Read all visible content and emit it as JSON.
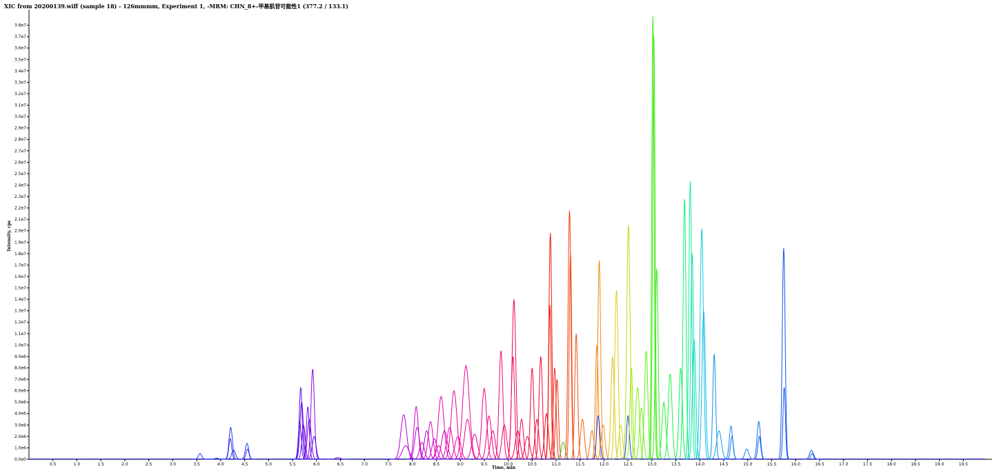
{
  "chart_data": {
    "type": "line",
    "title": "XIC from 20200139.wiff (sample 18) - 126mmmm, Experiment 1, -MRM: CHN_8+-甲基肌苷可能性1 (377.2 / 133.1)",
    "xlabel": "Time, min",
    "ylabel": "Intensity, cps",
    "xlim": [
      0.0,
      20.1
    ],
    "ylim": [
      0,
      39000000
    ],
    "grid": false,
    "legend": "none",
    "x_ticks": [
      "0.5",
      "1.0",
      "1.5",
      "2.0",
      "2.5",
      "3.0",
      "3.5",
      "4.0",
      "4.5",
      "5.0",
      "5.5",
      "6.0",
      "6.5",
      "7.0",
      "7.5",
      "8.0",
      "8.5",
      "9.0",
      "9.5",
      "10.0",
      "10.5",
      "11.0",
      "11.5",
      "12.0",
      "12.5",
      "13.0",
      "13.5",
      "14.0",
      "14.5",
      "15.0",
      "15.5",
      "16.0",
      "16.5",
      "17.0",
      "17.5",
      "18.0",
      "18.5",
      "19.0",
      "19.5"
    ],
    "y_ticks": [
      "0.0e0",
      "1.0e6",
      "2.0e6",
      "3.0e6",
      "4.0e6",
      "5.0e6",
      "6.0e6",
      "7.0e6",
      "8.0e6",
      "9.0e6",
      "1.0e7",
      "1.1e7",
      "1.2e7",
      "1.3e7",
      "1.4e7",
      "1.5e7",
      "1.6e7",
      "1.7e7",
      "1.8e7",
      "1.9e7",
      "2.0e7",
      "2.1e7",
      "2.2e7",
      "2.3e7",
      "2.4e7",
      "2.5e7",
      "2.6e7",
      "2.7e7",
      "2.8e7",
      "2.9e7",
      "3.0e7",
      "3.1e7",
      "3.2e7",
      "3.3e7",
      "3.4e7",
      "3.5e7",
      "3.6e7",
      "3.7e7",
      "3.8e7"
    ],
    "peaks": [
      {
        "t": 3.57,
        "h": 500000,
        "w": 0.035,
        "color": "#1a3cf0"
      },
      {
        "t": 3.92,
        "h": 100000,
        "w": 0.04,
        "color": "#1a3cf0"
      },
      {
        "t": 4.21,
        "h": 2800000,
        "w": 0.035,
        "color": "#1a3cf0"
      },
      {
        "t": 4.2,
        "h": 1800000,
        "w": 0.03,
        "color": "#3a2ce8"
      },
      {
        "t": 4.27,
        "h": 800000,
        "w": 0.04,
        "color": "#2a34ec"
      },
      {
        "t": 4.55,
        "h": 1400000,
        "w": 0.035,
        "color": "#1a3cf0"
      },
      {
        "t": 4.56,
        "h": 900000,
        "w": 0.03,
        "color": "#3a2ce8"
      },
      {
        "t": 5.67,
        "h": 6300000,
        "w": 0.03,
        "color": "#5a10e8"
      },
      {
        "t": 5.69,
        "h": 5000000,
        "w": 0.035,
        "color": "#6a08e6"
      },
      {
        "t": 5.65,
        "h": 3300000,
        "w": 0.03,
        "color": "#4a18ea"
      },
      {
        "t": 5.73,
        "h": 3000000,
        "w": 0.035,
        "color": "#7a06e4"
      },
      {
        "t": 5.82,
        "h": 4600000,
        "w": 0.03,
        "color": "#6a08e6"
      },
      {
        "t": 5.85,
        "h": 3500000,
        "w": 0.04,
        "color": "#7a06e4"
      },
      {
        "t": 5.92,
        "h": 7900000,
        "w": 0.035,
        "color": "#8a00e0"
      },
      {
        "t": 5.95,
        "h": 2000000,
        "w": 0.04,
        "color": "#5a10e8"
      },
      {
        "t": 6.45,
        "h": 150000,
        "w": 0.05,
        "color": "#8a00e0"
      },
      {
        "t": 7.82,
        "h": 3900000,
        "w": 0.06,
        "color": "#b000d8"
      },
      {
        "t": 7.86,
        "h": 1200000,
        "w": 0.07,
        "color": "#c000d0"
      },
      {
        "t": 8.08,
        "h": 4600000,
        "w": 0.045,
        "color": "#c800cc"
      },
      {
        "t": 8.1,
        "h": 2800000,
        "w": 0.05,
        "color": "#b000d8"
      },
      {
        "t": 8.2,
        "h": 1500000,
        "w": 0.05,
        "color": "#d000c4"
      },
      {
        "t": 8.3,
        "h": 2500000,
        "w": 0.05,
        "color": "#c000d0"
      },
      {
        "t": 8.38,
        "h": 3300000,
        "w": 0.05,
        "color": "#d800c0"
      },
      {
        "t": 8.46,
        "h": 1800000,
        "w": 0.05,
        "color": "#c800cc"
      },
      {
        "t": 8.55,
        "h": 1200000,
        "w": 0.05,
        "color": "#e000b8"
      },
      {
        "t": 8.6,
        "h": 5500000,
        "w": 0.06,
        "color": "#e000b0"
      },
      {
        "t": 8.67,
        "h": 2500000,
        "w": 0.06,
        "color": "#d800c0"
      },
      {
        "t": 8.78,
        "h": 2800000,
        "w": 0.06,
        "color": "#e800a8"
      },
      {
        "t": 8.87,
        "h": 6000000,
        "w": 0.06,
        "color": "#e800a0"
      },
      {
        "t": 8.95,
        "h": 2000000,
        "w": 0.06,
        "color": "#f000a0"
      },
      {
        "t": 9.12,
        "h": 8200000,
        "w": 0.07,
        "color": "#f00098"
      },
      {
        "t": 9.15,
        "h": 3500000,
        "w": 0.06,
        "color": "#f00090"
      },
      {
        "t": 9.3,
        "h": 2200000,
        "w": 0.06,
        "color": "#f00090"
      },
      {
        "t": 9.5,
        "h": 6200000,
        "w": 0.05,
        "color": "#f00088"
      },
      {
        "t": 9.6,
        "h": 3800000,
        "w": 0.05,
        "color": "#f00080"
      },
      {
        "t": 9.68,
        "h": 2500000,
        "w": 0.05,
        "color": "#f00078"
      },
      {
        "t": 9.85,
        "h": 9500000,
        "w": 0.04,
        "color": "#f00070"
      },
      {
        "t": 9.92,
        "h": 3000000,
        "w": 0.05,
        "color": "#f00068"
      },
      {
        "t": 10.12,
        "h": 14000000,
        "w": 0.04,
        "color": "#f00060"
      },
      {
        "t": 10.1,
        "h": 9000000,
        "w": 0.035,
        "color": "#f00058"
      },
      {
        "t": 10.2,
        "h": 2500000,
        "w": 0.05,
        "color": "#f00050"
      },
      {
        "t": 10.28,
        "h": 3500000,
        "w": 0.04,
        "color": "#f00048"
      },
      {
        "t": 10.4,
        "h": 2000000,
        "w": 0.05,
        "color": "#f00040"
      },
      {
        "t": 10.5,
        "h": 8000000,
        "w": 0.035,
        "color": "#f00038"
      },
      {
        "t": 10.6,
        "h": 3500000,
        "w": 0.04,
        "color": "#f00030"
      },
      {
        "t": 10.68,
        "h": 9000000,
        "w": 0.035,
        "color": "#f00028"
      },
      {
        "t": 10.8,
        "h": 4000000,
        "w": 0.04,
        "color": "#f00020"
      },
      {
        "t": 10.88,
        "h": 19800000,
        "w": 0.03,
        "color": "#f01010"
      },
      {
        "t": 10.87,
        "h": 13500000,
        "w": 0.025,
        "color": "#f02010"
      },
      {
        "t": 10.97,
        "h": 8000000,
        "w": 0.03,
        "color": "#f02810"
      },
      {
        "t": 11.02,
        "h": 7000000,
        "w": 0.03,
        "color": "#f03010"
      },
      {
        "t": 11.15,
        "h": 1500000,
        "w": 0.04,
        "color": "#40c000"
      },
      {
        "t": 11.28,
        "h": 21800000,
        "w": 0.03,
        "color": "#f04010"
      },
      {
        "t": 11.3,
        "h": 18000000,
        "w": 0.025,
        "color": "#f04810"
      },
      {
        "t": 11.42,
        "h": 11000000,
        "w": 0.03,
        "color": "#f05010"
      },
      {
        "t": 11.55,
        "h": 3500000,
        "w": 0.04,
        "color": "#f06010"
      },
      {
        "t": 11.75,
        "h": 2500000,
        "w": 0.04,
        "color": "#f07010"
      },
      {
        "t": 11.85,
        "h": 10000000,
        "w": 0.03,
        "color": "#f08010"
      },
      {
        "t": 11.9,
        "h": 17400000,
        "w": 0.03,
        "color": "#f08810"
      },
      {
        "t": 11.88,
        "h": 3800000,
        "w": 0.035,
        "color": "#1a3cf0"
      },
      {
        "t": 11.98,
        "h": 3000000,
        "w": 0.04,
        "color": "#f09010"
      },
      {
        "t": 12.18,
        "h": 9000000,
        "w": 0.035,
        "color": "#e0c010"
      },
      {
        "t": 12.26,
        "h": 14800000,
        "w": 0.035,
        "color": "#d8d010"
      },
      {
        "t": 12.35,
        "h": 3000000,
        "w": 0.04,
        "color": "#c8d810"
      },
      {
        "t": 12.5,
        "h": 3800000,
        "w": 0.03,
        "color": "#1a3cf0"
      },
      {
        "t": 12.51,
        "h": 20500000,
        "w": 0.035,
        "color": "#b0e010"
      },
      {
        "t": 12.57,
        "h": 8000000,
        "w": 0.03,
        "color": "#a0e810"
      },
      {
        "t": 12.7,
        "h": 6300000,
        "w": 0.04,
        "color": "#80f010"
      },
      {
        "t": 12.78,
        "h": 4500000,
        "w": 0.04,
        "color": "#70f010"
      },
      {
        "t": 12.88,
        "h": 9500000,
        "w": 0.035,
        "color": "#60f010"
      },
      {
        "t": 13.02,
        "h": 38800000,
        "w": 0.025,
        "color": "#40f010"
      },
      {
        "t": 13.04,
        "h": 37000000,
        "w": 0.025,
        "color": "#40e810"
      },
      {
        "t": 13.1,
        "h": 16700000,
        "w": 0.03,
        "color": "#30f020"
      },
      {
        "t": 13.25,
        "h": 5000000,
        "w": 0.04,
        "color": "#20f030"
      },
      {
        "t": 13.38,
        "h": 7500000,
        "w": 0.04,
        "color": "#20f040"
      },
      {
        "t": 13.6,
        "h": 8000000,
        "w": 0.035,
        "color": "#10f050"
      },
      {
        "t": 13.68,
        "h": 22800000,
        "w": 0.03,
        "color": "#10f070"
      },
      {
        "t": 13.8,
        "h": 24300000,
        "w": 0.03,
        "color": "#10f090"
      },
      {
        "t": 13.84,
        "h": 18000000,
        "w": 0.03,
        "color": "#10e0b0"
      },
      {
        "t": 13.88,
        "h": 10500000,
        "w": 0.035,
        "color": "#10d8c0"
      },
      {
        "t": 14.04,
        "h": 20200000,
        "w": 0.035,
        "color": "#10c8e0"
      },
      {
        "t": 14.08,
        "h": 13000000,
        "w": 0.035,
        "color": "#10b8e8"
      },
      {
        "t": 14.3,
        "h": 9200000,
        "w": 0.03,
        "color": "#1090e8"
      },
      {
        "t": 14.4,
        "h": 2500000,
        "w": 0.05,
        "color": "#10a0e8"
      },
      {
        "t": 14.65,
        "h": 2900000,
        "w": 0.035,
        "color": "#1080f0"
      },
      {
        "t": 14.67,
        "h": 2000000,
        "w": 0.03,
        "color": "#1070f0"
      },
      {
        "t": 14.98,
        "h": 900000,
        "w": 0.04,
        "color": "#1078f0"
      },
      {
        "t": 15.23,
        "h": 3300000,
        "w": 0.035,
        "color": "#1068f0"
      },
      {
        "t": 15.24,
        "h": 2000000,
        "w": 0.03,
        "color": "#1060f0"
      },
      {
        "t": 15.75,
        "h": 18500000,
        "w": 0.03,
        "color": "#1050f0"
      },
      {
        "t": 15.76,
        "h": 6300000,
        "w": 0.025,
        "color": "#1058f0"
      },
      {
        "t": 16.33,
        "h": 800000,
        "w": 0.04,
        "color": "#1060f0"
      },
      {
        "t": 16.34,
        "h": 500000,
        "w": 0.03,
        "color": "#1050f0"
      }
    ]
  }
}
